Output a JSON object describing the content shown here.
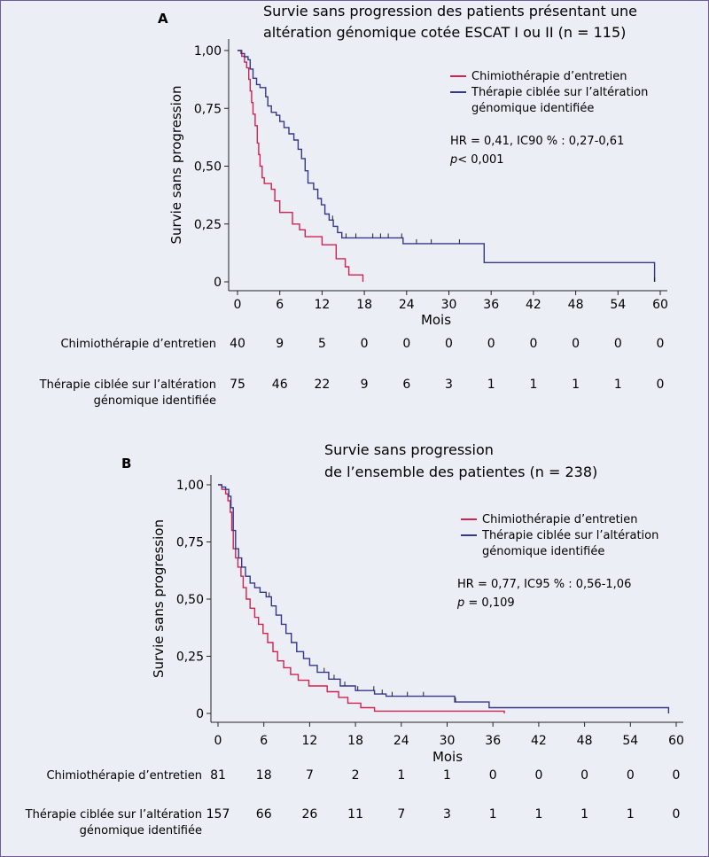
{
  "chart_data": [
    {
      "type": "line",
      "panel_label": "A",
      "title": [
        "Survie sans progression des patients présentant une",
        "altération génomique cotée ESCAT I ou II (n = 115)"
      ],
      "xlabel": "Mois",
      "ylabel": "Survie sans progression",
      "xlim": [
        0,
        60
      ],
      "ylim": [
        0,
        1
      ],
      "xticks": [
        "0",
        "6",
        "12",
        "18",
        "24",
        "30",
        "36",
        "42",
        "48",
        "54",
        "60"
      ],
      "yticks": [
        "0",
        "0,25",
        "0,50",
        "0,75",
        "1,00"
      ],
      "legend_position": "top-right",
      "stats": [
        "HR = 0,41, IC90 % : 0,27-0,61",
        "p< 0,001"
      ],
      "series": [
        {
          "name": "Chimiothérapie d’entretien",
          "color": "#d2224f",
          "steps": [
            [
              0,
              1.0
            ],
            [
              0.6,
              0.975
            ],
            [
              1.0,
              0.95
            ],
            [
              1.3,
              0.925
            ],
            [
              1.6,
              0.875
            ],
            [
              1.8,
              0.825
            ],
            [
              2.0,
              0.775
            ],
            [
              2.2,
              0.725
            ],
            [
              2.5,
              0.675
            ],
            [
              2.8,
              0.6
            ],
            [
              3.0,
              0.55
            ],
            [
              3.2,
              0.5
            ],
            [
              3.5,
              0.45
            ],
            [
              3.8,
              0.425
            ],
            [
              4.8,
              0.4
            ],
            [
              5.3,
              0.35
            ],
            [
              6.0,
              0.3
            ],
            [
              7.8,
              0.25
            ],
            [
              8.8,
              0.225
            ],
            [
              9.6,
              0.195
            ],
            [
              12.0,
              0.16
            ],
            [
              14.0,
              0.1
            ],
            [
              15.3,
              0.065
            ],
            [
              15.8,
              0.03
            ],
            [
              17.8,
              0.0
            ]
          ],
          "end_x": 17.8,
          "censor_x": []
        },
        {
          "name": "Thérapie ciblée sur l’altération génomique identifiée",
          "color": "#34378a",
          "steps": [
            [
              0,
              1.0
            ],
            [
              0.5,
              0.987
            ],
            [
              1.0,
              0.973
            ],
            [
              1.5,
              0.96
            ],
            [
              1.8,
              0.92
            ],
            [
              2.2,
              0.88
            ],
            [
              2.7,
              0.853
            ],
            [
              3.2,
              0.84
            ],
            [
              4.0,
              0.8
            ],
            [
              4.3,
              0.76
            ],
            [
              4.8,
              0.733
            ],
            [
              5.5,
              0.72
            ],
            [
              6.0,
              0.693
            ],
            [
              6.6,
              0.667
            ],
            [
              7.3,
              0.64
            ],
            [
              8.0,
              0.613
            ],
            [
              8.6,
              0.573
            ],
            [
              9.1,
              0.533
            ],
            [
              9.6,
              0.48
            ],
            [
              10.0,
              0.427
            ],
            [
              10.8,
              0.4
            ],
            [
              11.4,
              0.36
            ],
            [
              11.9,
              0.333
            ],
            [
              12.4,
              0.293
            ],
            [
              13.0,
              0.267
            ],
            [
              13.6,
              0.24
            ],
            [
              14.2,
              0.213
            ],
            [
              14.8,
              0.19
            ],
            [
              23.5,
              0.165
            ],
            [
              35.0,
              0.083
            ],
            [
              59.2,
              0.0
            ]
          ],
          "end_x": 59.2,
          "censor_x": [
            13.5,
            15.4,
            16.8,
            19.2,
            20.3,
            21.4,
            23.3,
            25.4,
            27.5,
            31.5,
            59.2
          ]
        }
      ],
      "risk_table": {
        "times": [
          0,
          6,
          12,
          18,
          24,
          30,
          36,
          42,
          48,
          54,
          60
        ],
        "rows": [
          {
            "label": [
              "Chimiothérapie  d’entretien"
            ],
            "values": [
              "40",
              "9",
              "5",
              "0",
              "0",
              "0",
              "0",
              "0",
              "0",
              "0",
              "0"
            ]
          },
          {
            "label": [
              "Thérapie ciblée sur l’altération",
              "génomique identifiée"
            ],
            "values": [
              "75",
              "46",
              "22",
              "9",
              "6",
              "3",
              "1",
              "1",
              "1",
              "1",
              "0"
            ]
          }
        ]
      }
    },
    {
      "type": "line",
      "panel_label": "B",
      "title": [
        "Survie sans progression",
        "de l’ensemble des patientes (n = 238)"
      ],
      "xlabel": "Mois",
      "ylabel": "Survie sans progression",
      "xlim": [
        0,
        60
      ],
      "ylim": [
        0,
        1
      ],
      "xticks": [
        "0",
        "6",
        "12",
        "18",
        "24",
        "30",
        "36",
        "42",
        "48",
        "54",
        "60"
      ],
      "yticks": [
        "0",
        "0,25",
        "0,50",
        "0,75",
        "1,00"
      ],
      "legend_position": "top-right",
      "stats": [
        "HR = 0,77, IC95 % : 0,56-1,06",
        "p = 0,109"
      ],
      "series": [
        {
          "name": "Chimiothérapie d’entretien",
          "color": "#d2224f",
          "steps": [
            [
              0,
              1.0
            ],
            [
              0.5,
              0.98
            ],
            [
              1.0,
              0.96
            ],
            [
              1.3,
              0.93
            ],
            [
              1.6,
              0.88
            ],
            [
              1.8,
              0.8
            ],
            [
              2.0,
              0.72
            ],
            [
              2.3,
              0.68
            ],
            [
              2.6,
              0.64
            ],
            [
              3.0,
              0.6
            ],
            [
              3.3,
              0.55
            ],
            [
              3.7,
              0.5
            ],
            [
              4.2,
              0.46
            ],
            [
              4.8,
              0.42
            ],
            [
              5.3,
              0.39
            ],
            [
              5.9,
              0.35
            ],
            [
              6.5,
              0.31
            ],
            [
              7.2,
              0.27
            ],
            [
              7.8,
              0.23
            ],
            [
              8.6,
              0.2
            ],
            [
              9.5,
              0.17
            ],
            [
              10.5,
              0.145
            ],
            [
              11.9,
              0.12
            ],
            [
              14.3,
              0.095
            ],
            [
              15.8,
              0.07
            ],
            [
              17.0,
              0.045
            ],
            [
              18.7,
              0.025
            ],
            [
              20.5,
              0.01
            ],
            [
              37.5,
              0.0
            ]
          ],
          "end_x": 37.5,
          "censor_x": []
        },
        {
          "name": "Thérapie ciblée sur l’altération génomique identifiée",
          "color": "#34378a",
          "steps": [
            [
              0,
              1.0
            ],
            [
              0.5,
              0.99
            ],
            [
              1.0,
              0.98
            ],
            [
              1.4,
              0.95
            ],
            [
              1.7,
              0.9
            ],
            [
              2.0,
              0.8
            ],
            [
              2.3,
              0.72
            ],
            [
              2.7,
              0.68
            ],
            [
              3.1,
              0.64
            ],
            [
              3.6,
              0.6
            ],
            [
              4.2,
              0.57
            ],
            [
              4.8,
              0.55
            ],
            [
              5.5,
              0.53
            ],
            [
              6.3,
              0.51
            ],
            [
              7.0,
              0.47
            ],
            [
              7.6,
              0.43
            ],
            [
              8.3,
              0.39
            ],
            [
              8.9,
              0.35
            ],
            [
              9.6,
              0.31
            ],
            [
              10.3,
              0.27
            ],
            [
              11.2,
              0.24
            ],
            [
              12.0,
              0.21
            ],
            [
              13.0,
              0.18
            ],
            [
              14.5,
              0.15
            ],
            [
              16.0,
              0.12
            ],
            [
              18.0,
              0.1
            ],
            [
              20.5,
              0.085
            ],
            [
              22.0,
              0.075
            ],
            [
              31.0,
              0.05
            ],
            [
              35.5,
              0.025
            ],
            [
              59.0,
              0.0
            ]
          ],
          "end_x": 59.0,
          "censor_x": [
            6.7,
            13.9,
            15.2,
            16.6,
            18.3,
            20.4,
            21.5,
            22.8,
            24.8,
            26.9,
            31.1
          ]
        }
      ],
      "risk_table": {
        "times": [
          0,
          6,
          12,
          18,
          24,
          30,
          36,
          42,
          48,
          54,
          60
        ],
        "rows": [
          {
            "label": [
              "Chimiothérapie  d’entretien"
            ],
            "values": [
              "81",
              "18",
              "7",
              "2",
              "1",
              "1",
              "0",
              "0",
              "0",
              "0",
              "0"
            ]
          },
          {
            "label": [
              "Thérapie ciblée sur l’altération",
              "génomique identifiée"
            ],
            "values": [
              "157",
              "66",
              "26",
              "11",
              "7",
              "3",
              "1",
              "1",
              "1",
              "1",
              "0"
            ]
          }
        ]
      }
    }
  ]
}
